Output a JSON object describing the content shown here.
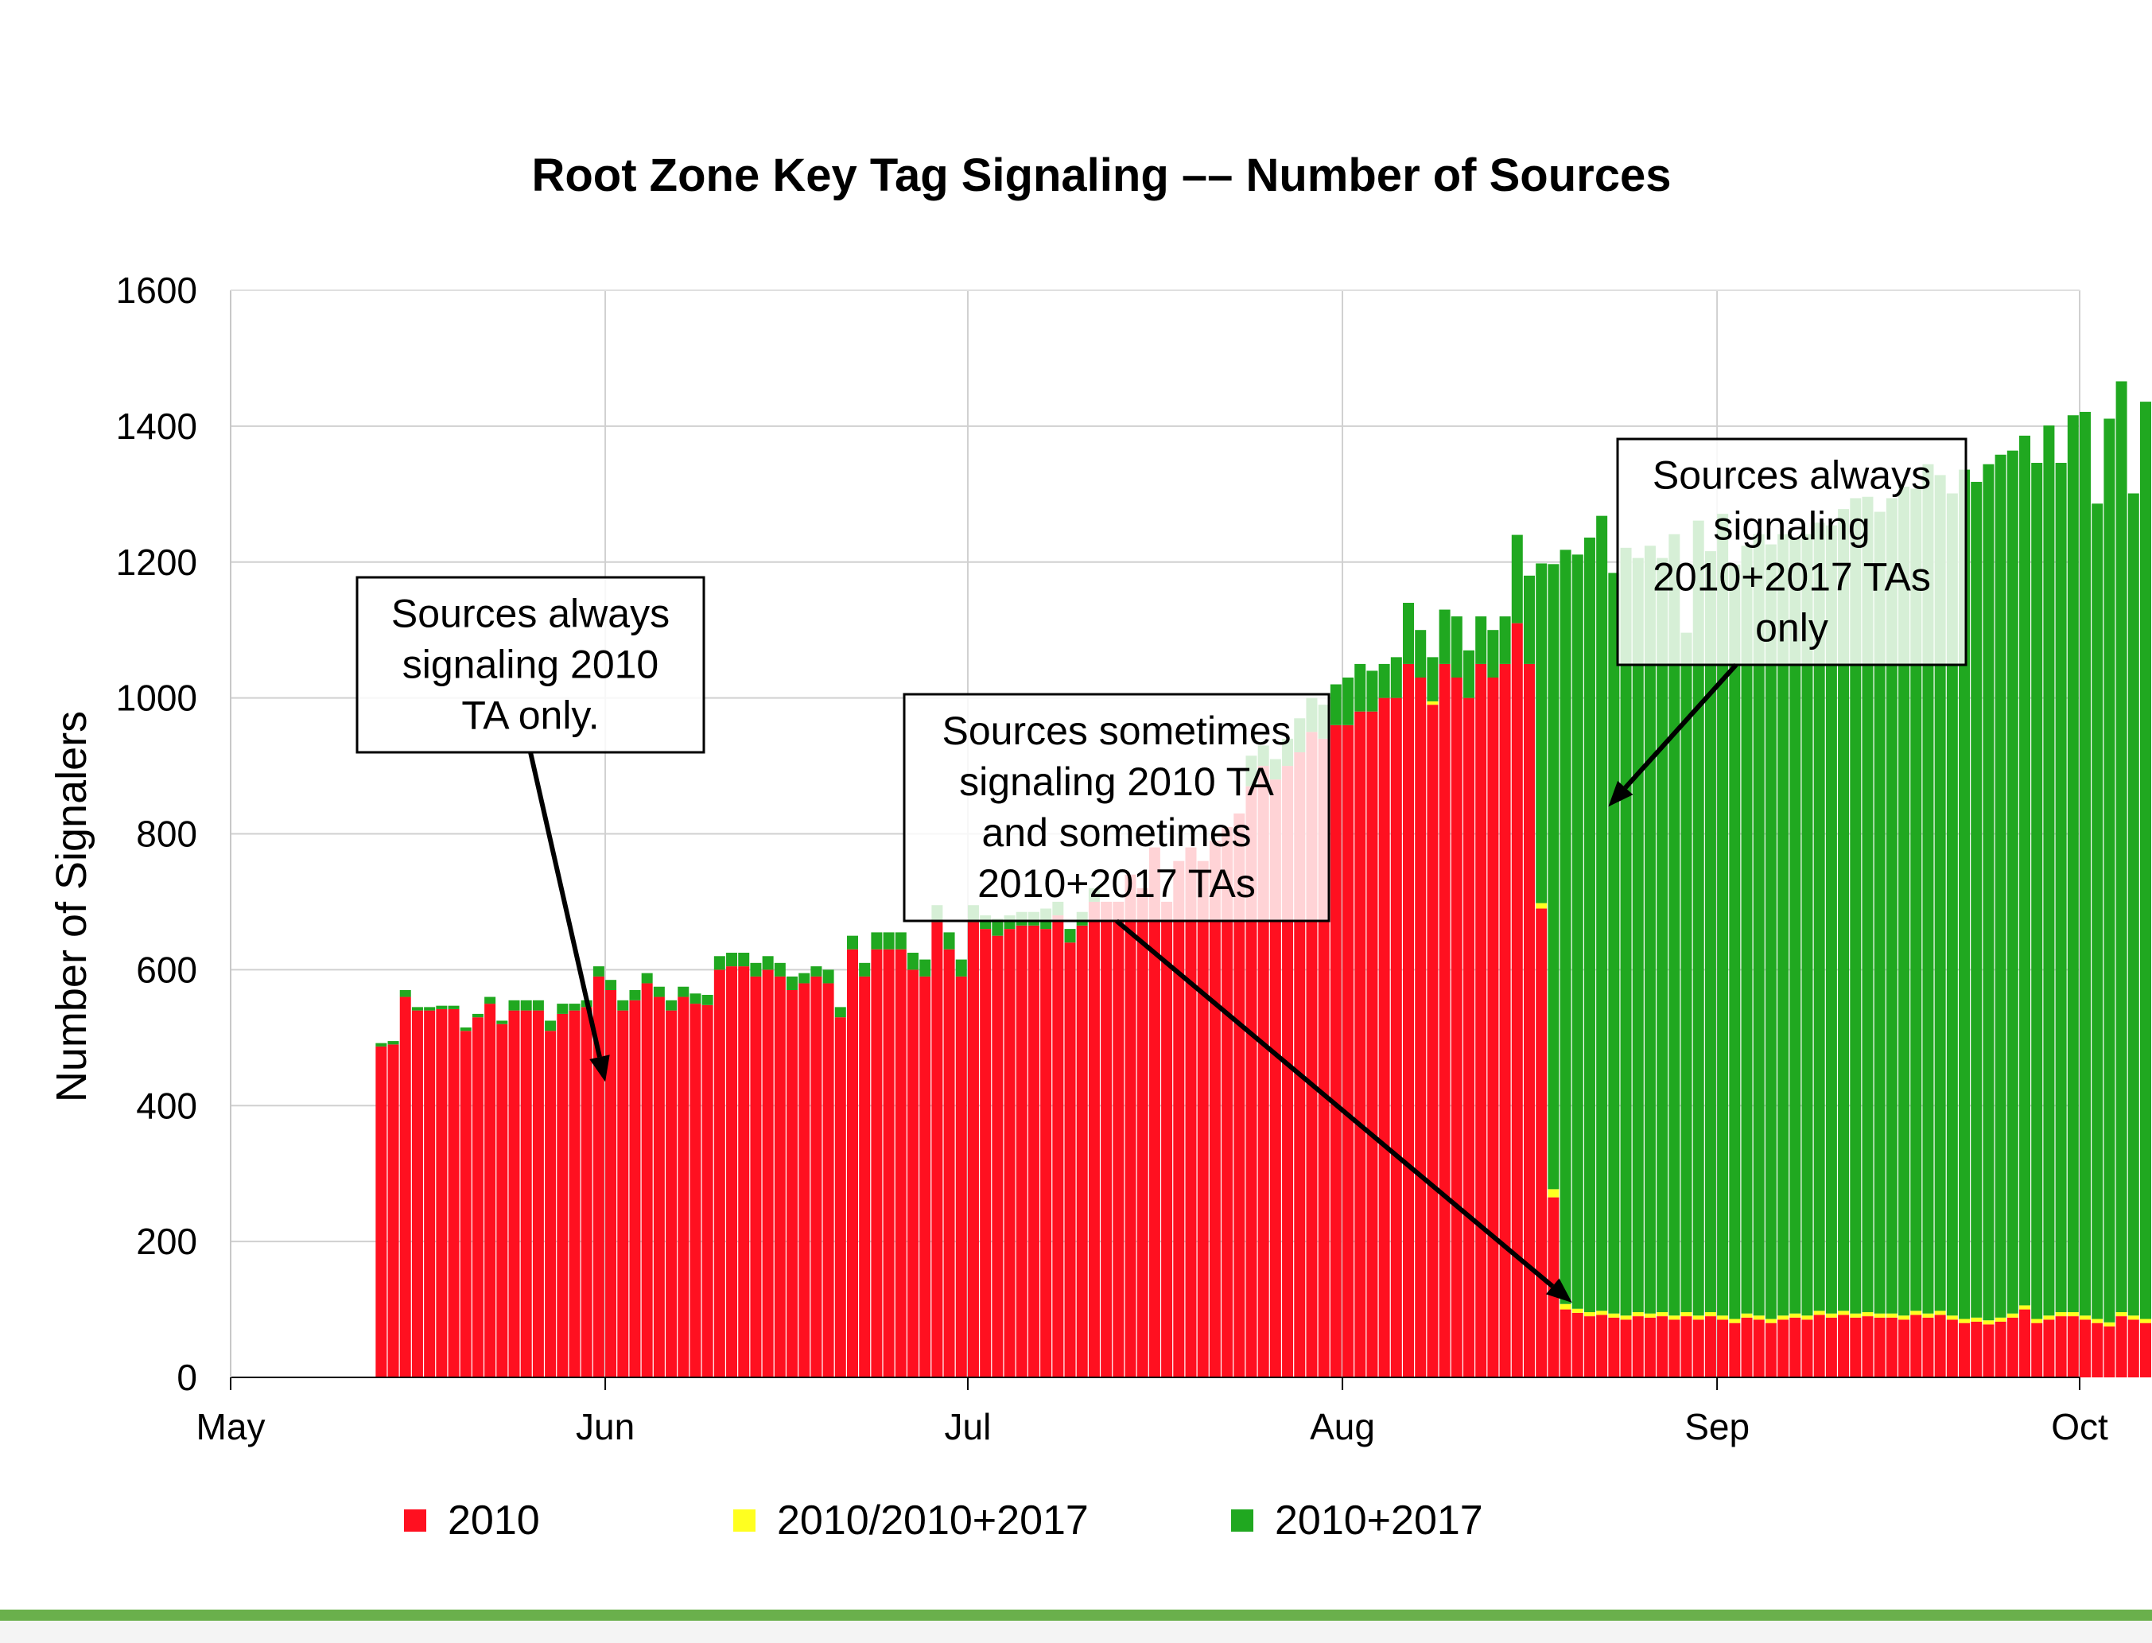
{
  "chart_data": {
    "type": "bar",
    "stacked": true,
    "title": "Root Zone Key Tag Signaling –– Number of Sources",
    "xlabel": "",
    "ylabel": "Number of Signalers",
    "ylim": [
      0,
      1600
    ],
    "yticks": [
      0,
      200,
      400,
      600,
      800,
      1000,
      1200,
      1400,
      1600
    ],
    "xticks": [
      "May",
      "Jun",
      "Jul",
      "Aug",
      "Sep",
      "Oct"
    ],
    "xlim": [
      "2017-05-01",
      "2017-10-01"
    ],
    "grid": true,
    "legend_position": "bottom",
    "date_start": "2017-05-13",
    "series": [
      {
        "name": "2010",
        "color": "#ff1020",
        "values": [
          487,
          490,
          560,
          540,
          540,
          542,
          542,
          510,
          530,
          550,
          520,
          540,
          540,
          540,
          510,
          535,
          540,
          545,
          590,
          570,
          540,
          555,
          580,
          560,
          540,
          560,
          550,
          548,
          600,
          605,
          605,
          590,
          600,
          590,
          570,
          580,
          590,
          580,
          530,
          630,
          590,
          630,
          630,
          630,
          600,
          590,
          670,
          630,
          590,
          670,
          660,
          650,
          660,
          665,
          665,
          660,
          680,
          640,
          665,
          700,
          700,
          700,
          740,
          720,
          780,
          700,
          760,
          780,
          760,
          790,
          810,
          830,
          870,
          900,
          880,
          900,
          920,
          950,
          940,
          960,
          960,
          980,
          980,
          1000,
          1000,
          1050,
          1030,
          990,
          1050,
          1030,
          1000,
          1050,
          1030,
          1050,
          1110,
          1050,
          690,
          265,
          100,
          95,
          90,
          92,
          88,
          85,
          90,
          88,
          90,
          85,
          90,
          85,
          90,
          85,
          80,
          88,
          85,
          80,
          85,
          88,
          85,
          92,
          88,
          92,
          88,
          90,
          88,
          88,
          85,
          92,
          88,
          92,
          85,
          80,
          82,
          78,
          82,
          88,
          100,
          80,
          85,
          90,
          90,
          85,
          80,
          75,
          90,
          85,
          80,
          88,
          100,
          90
        ]
      },
      {
        "name": "2010/2010+2017",
        "color": "#ffff20",
        "values": [
          0,
          0,
          0,
          0,
          0,
          0,
          0,
          0,
          0,
          0,
          0,
          0,
          0,
          0,
          0,
          0,
          0,
          0,
          0,
          0,
          0,
          0,
          0,
          0,
          0,
          0,
          0,
          0,
          0,
          0,
          0,
          0,
          0,
          0,
          0,
          0,
          0,
          0,
          0,
          0,
          0,
          0,
          0,
          0,
          0,
          0,
          0,
          0,
          0,
          0,
          0,
          0,
          0,
          0,
          0,
          0,
          0,
          0,
          0,
          0,
          0,
          0,
          0,
          0,
          0,
          0,
          0,
          0,
          0,
          0,
          0,
          0,
          0,
          0,
          0,
          0,
          0,
          0,
          0,
          0,
          0,
          0,
          0,
          0,
          0,
          0,
          0,
          5,
          0,
          0,
          0,
          0,
          0,
          0,
          0,
          0,
          8,
          12,
          8,
          6,
          6,
          6,
          6,
          6,
          6,
          6,
          6,
          6,
          6,
          6,
          6,
          6,
          6,
          6,
          6,
          6,
          6,
          6,
          6,
          6,
          6,
          6,
          6,
          6,
          6,
          6,
          6,
          6,
          6,
          6,
          6,
          6,
          6,
          6,
          6,
          6,
          6,
          6,
          6,
          6,
          6,
          6,
          6,
          6,
          6,
          6,
          6,
          6,
          6,
          6
        ]
      },
      {
        "name": "2010+2017",
        "color": "#20a820",
        "values": [
          5,
          5,
          10,
          5,
          5,
          5,
          5,
          5,
          5,
          10,
          5,
          15,
          15,
          15,
          15,
          15,
          10,
          10,
          15,
          15,
          15,
          15,
          15,
          15,
          15,
          15,
          15,
          15,
          20,
          20,
          20,
          20,
          20,
          20,
          20,
          15,
          15,
          20,
          15,
          20,
          20,
          25,
          25,
          25,
          25,
          25,
          25,
          25,
          25,
          25,
          20,
          25,
          20,
          20,
          20,
          30,
          20,
          20,
          20,
          20,
          0,
          0,
          0,
          0,
          0,
          0,
          0,
          0,
          0,
          0,
          0,
          0,
          45,
          30,
          30,
          40,
          50,
          50,
          50,
          60,
          70,
          70,
          60,
          50,
          60,
          90,
          70,
          65,
          80,
          90,
          70,
          70,
          70,
          70,
          130,
          130,
          500,
          920,
          1110,
          1110,
          1140,
          1170,
          1090,
          1130,
          1110,
          1130,
          1110,
          1150,
          1000,
          1170,
          1120,
          1180,
          1110,
          1130,
          1150,
          1140,
          1150,
          1140,
          1150,
          1160,
          1160,
          1180,
          1200,
          1200,
          1180,
          1200,
          1220,
          1210,
          1250,
          1230,
          1210,
          1250,
          1230,
          1260,
          1270,
          1270,
          1280,
          1260,
          1310,
          1250,
          1320,
          1330,
          1200,
          1330,
          1370,
          1210,
          1350,
          1380,
          1380,
          1380
        ]
      }
    ],
    "annotations": [
      {
        "lines": [
          "Sources always",
          "signaling 2010",
          "TA only."
        ],
        "arrow_to": {
          "date": "2017-06-01",
          "y": 435
        }
      },
      {
        "lines": [
          "Sources sometimes",
          "signaling 2010 TA",
          "and sometimes",
          "2010+2017 TAs"
        ],
        "arrow_to": {
          "date": "2017-08-20",
          "y": 110
        }
      },
      {
        "lines": [
          "Sources always",
          "signaling",
          "2010+2017 TAs",
          "only"
        ],
        "arrow_to": {
          "date": "2017-08-23",
          "y": 840
        }
      }
    ]
  }
}
